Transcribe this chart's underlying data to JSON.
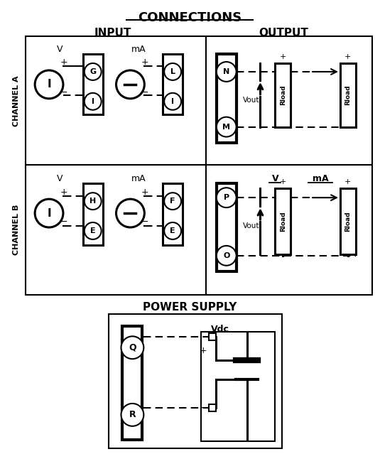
{
  "title": "CONNECTIONS",
  "input_label": "INPUT",
  "output_label": "OUTPUT",
  "channel_a_label": "CHANNEL A",
  "channel_b_label": "CHANNEL B",
  "power_supply_label": "POWER SUPPLY",
  "bg_color": "#ffffff",
  "line_color": "#000000",
  "fig_width": 5.35,
  "fig_height": 6.39,
  "dpi": 100
}
